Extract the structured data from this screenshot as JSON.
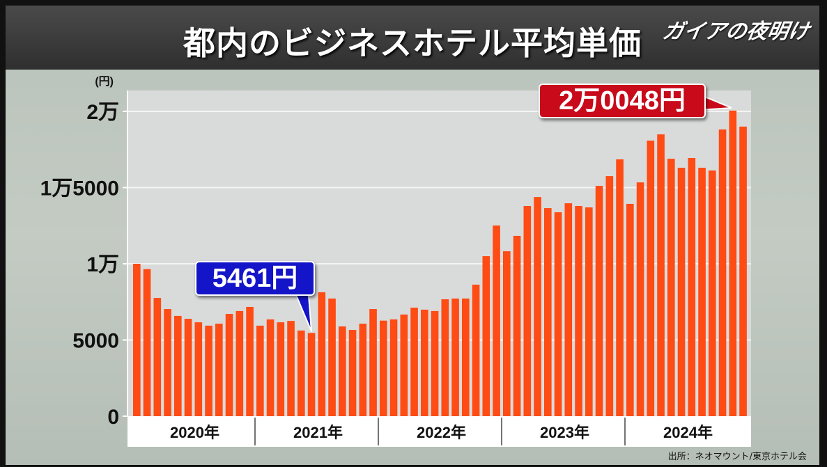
{
  "title": "都内のビジネスホテル平均単価",
  "logo": "ガイアの夜明け",
  "source": "出所：ネオマウント/東京ホテル会",
  "colors": {
    "bar": "#ff4b14",
    "plot_bg": "#d9dbdb",
    "low_callout": "#1414c8",
    "high_callout": "#c80a1a"
  },
  "chart_data": {
    "type": "bar",
    "title": "都内のビジネスホテル平均単価",
    "ylabel": "(円)",
    "ylim": [
      0,
      20500
    ],
    "yticks": [
      {
        "value": 0,
        "label": "0"
      },
      {
        "value": 5000,
        "label": "5000"
      },
      {
        "value": 10000,
        "label": "1万"
      },
      {
        "value": 15000,
        "label": "1万5000"
      },
      {
        "value": 20000,
        "label": "2万"
      }
    ],
    "years": [
      "2020年",
      "2021年",
      "2022年",
      "2023年",
      "2024年"
    ],
    "months_per_year": 12,
    "values": [
      10000,
      9650,
      7760,
      7030,
      6580,
      6390,
      6160,
      5940,
      6070,
      6710,
      6900,
      7170,
      5940,
      6350,
      6160,
      6250,
      5620,
      5461,
      8130,
      7720,
      5890,
      5660,
      6070,
      7030,
      6270,
      6350,
      6670,
      7120,
      6990,
      6900,
      7670,
      7720,
      7720,
      8630,
      10500,
      12510,
      10820,
      11830,
      13790,
      14380,
      13650,
      13380,
      13970,
      13790,
      13700,
      15110,
      15750,
      16850,
      13930,
      15340,
      18080,
      18490,
      16890,
      16300,
      16940,
      16300,
      16120,
      18810,
      20048,
      19000
    ],
    "annotations": [
      {
        "label": "5461円",
        "index": 17,
        "value": 5461
      },
      {
        "label": "2万0048円",
        "index": 58,
        "value": 20048
      }
    ],
    "grid": true
  }
}
